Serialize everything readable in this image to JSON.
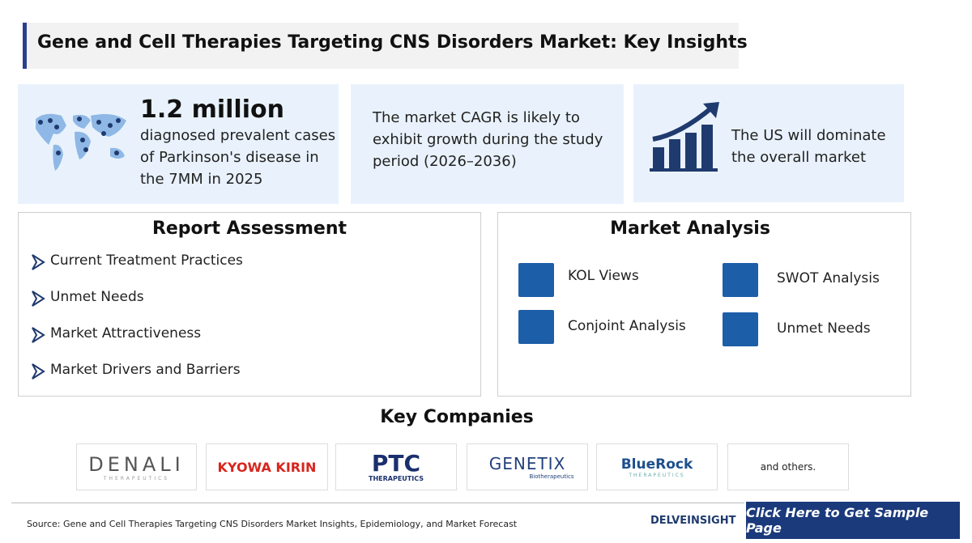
{
  "title": "Gene and Cell Therapies Targeting CNS Disorders Market: Key Insights",
  "insights": [
    {
      "headline": "1.2 million",
      "text": "diagnosed prevalent cases of Parkinson's disease in the 7MM in 2025"
    },
    {
      "text": "The market CAGR is likely to exhibit growth during the study period (2026–2036)"
    },
    {
      "text": "The US will dominate the overall market"
    }
  ],
  "report_assessment": {
    "heading": "Report Assessment",
    "items": [
      "Current Treatment Practices",
      "Unmet Needs",
      "Market Attractiveness",
      "Market Drivers and Barriers"
    ]
  },
  "market_analysis": {
    "heading": "Market Analysis",
    "items": [
      "KOL Views",
      "SWOT Analysis",
      "Conjoint Analysis",
      "Unmet Needs"
    ]
  },
  "key_companies": {
    "heading": "Key Companies",
    "logos": [
      {
        "name": "DENALI",
        "tagline": "THERAPEUTICS"
      },
      {
        "name": "KYOWA KIRIN"
      },
      {
        "name": "PTC",
        "tagline": "THERAPEUTICS"
      },
      {
        "name": "GENETIX",
        "tagline": "Biotherapeutics"
      },
      {
        "name": "BlueRock",
        "tagline": "THERAPEUTICS"
      }
    ],
    "others": "and others."
  },
  "footer": {
    "source": "Source: Gene and Cell Therapies Targeting CNS Disorders Market Insights, Epidemiology, and Market Forecast",
    "brand": "DELVEINSIGHT",
    "button": "Click Here to Get Sample Page"
  }
}
